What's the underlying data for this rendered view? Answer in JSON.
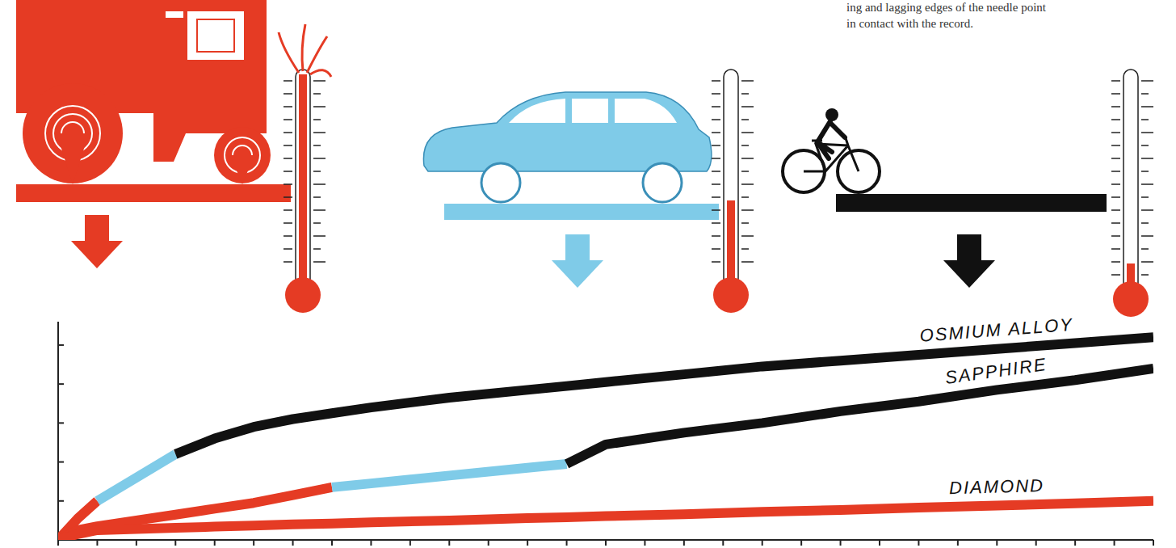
{
  "chart_data": {
    "type": "line",
    "annotations": [
      "ing and lagging edges of the needle point",
      "in contact with the record."
    ],
    "x": [
      0,
      0.5,
      1,
      2,
      3,
      4,
      5,
      6,
      7,
      8,
      10,
      12,
      13,
      14,
      16,
      18,
      20,
      22,
      24,
      26,
      28
    ],
    "xlim": [
      0,
      28
    ],
    "xticks": [
      0,
      1,
      2,
      3,
      4,
      5,
      6,
      7,
      8,
      9,
      10,
      11,
      12,
      13,
      14,
      15,
      16,
      17,
      18,
      19,
      20,
      21,
      22,
      23,
      24,
      25,
      26,
      27,
      28
    ],
    "ylim": [
      0,
      5.6
    ],
    "yticks": [
      0,
      1,
      2,
      3,
      4,
      5
    ],
    "tick_labels": false,
    "series": [
      {
        "name": "OSMIUM ALLOY",
        "values": [
          0,
          0.55,
          1.0,
          1.6,
          2.2,
          2.6,
          2.9,
          3.1,
          3.25,
          3.4,
          3.65,
          3.85,
          3.95,
          4.05,
          4.25,
          4.45,
          4.6,
          4.75,
          4.9,
          5.05,
          5.2
        ],
        "colors": [
          "#e53b24",
          "#e53b24",
          "#e53b24",
          "#7fcbe8",
          "#7fcbe8",
          "#111111",
          "#111111",
          "#111111",
          "#111111",
          "#111111",
          "#111111",
          "#111111",
          "#111111",
          "#111111",
          "#111111",
          "#111111",
          "#111111",
          "#111111",
          "#111111",
          "#111111",
          "#111111"
        ]
      },
      {
        "name": "SAPPHIRE",
        "values": [
          0,
          0.25,
          0.35,
          0.5,
          0.65,
          0.8,
          0.95,
          1.15,
          1.35,
          1.45,
          1.65,
          1.85,
          1.95,
          2.45,
          2.75,
          3.0,
          3.3,
          3.55,
          3.85,
          4.1,
          4.4
        ],
        "colors": [
          "#e53b24",
          "#e53b24",
          "#e53b24",
          "#e53b24",
          "#e53b24",
          "#e53b24",
          "#e53b24",
          "#e53b24",
          "#e53b24",
          "#7fcbe8",
          "#7fcbe8",
          "#7fcbe8",
          "#7fcbe8",
          "#111111",
          "#111111",
          "#111111",
          "#111111",
          "#111111",
          "#111111",
          "#111111",
          "#111111"
        ]
      },
      {
        "name": "DIAMOND",
        "values": [
          0,
          0.15,
          0.25,
          0.28,
          0.31,
          0.34,
          0.37,
          0.4,
          0.42,
          0.45,
          0.5,
          0.56,
          0.58,
          0.61,
          0.66,
          0.72,
          0.77,
          0.83,
          0.88,
          0.94,
          1.0
        ],
        "colors": [
          "#e53b24",
          "#e53b24",
          "#e53b24",
          "#e53b24",
          "#e53b24",
          "#e53b24",
          "#e53b24",
          "#e53b24",
          "#e53b24",
          "#e53b24",
          "#e53b24",
          "#e53b24",
          "#e53b24",
          "#e53b24",
          "#e53b24",
          "#e53b24",
          "#e53b24",
          "#e53b24",
          "#e53b24",
          "#e53b24",
          "#e53b24"
        ]
      }
    ]
  }
}
